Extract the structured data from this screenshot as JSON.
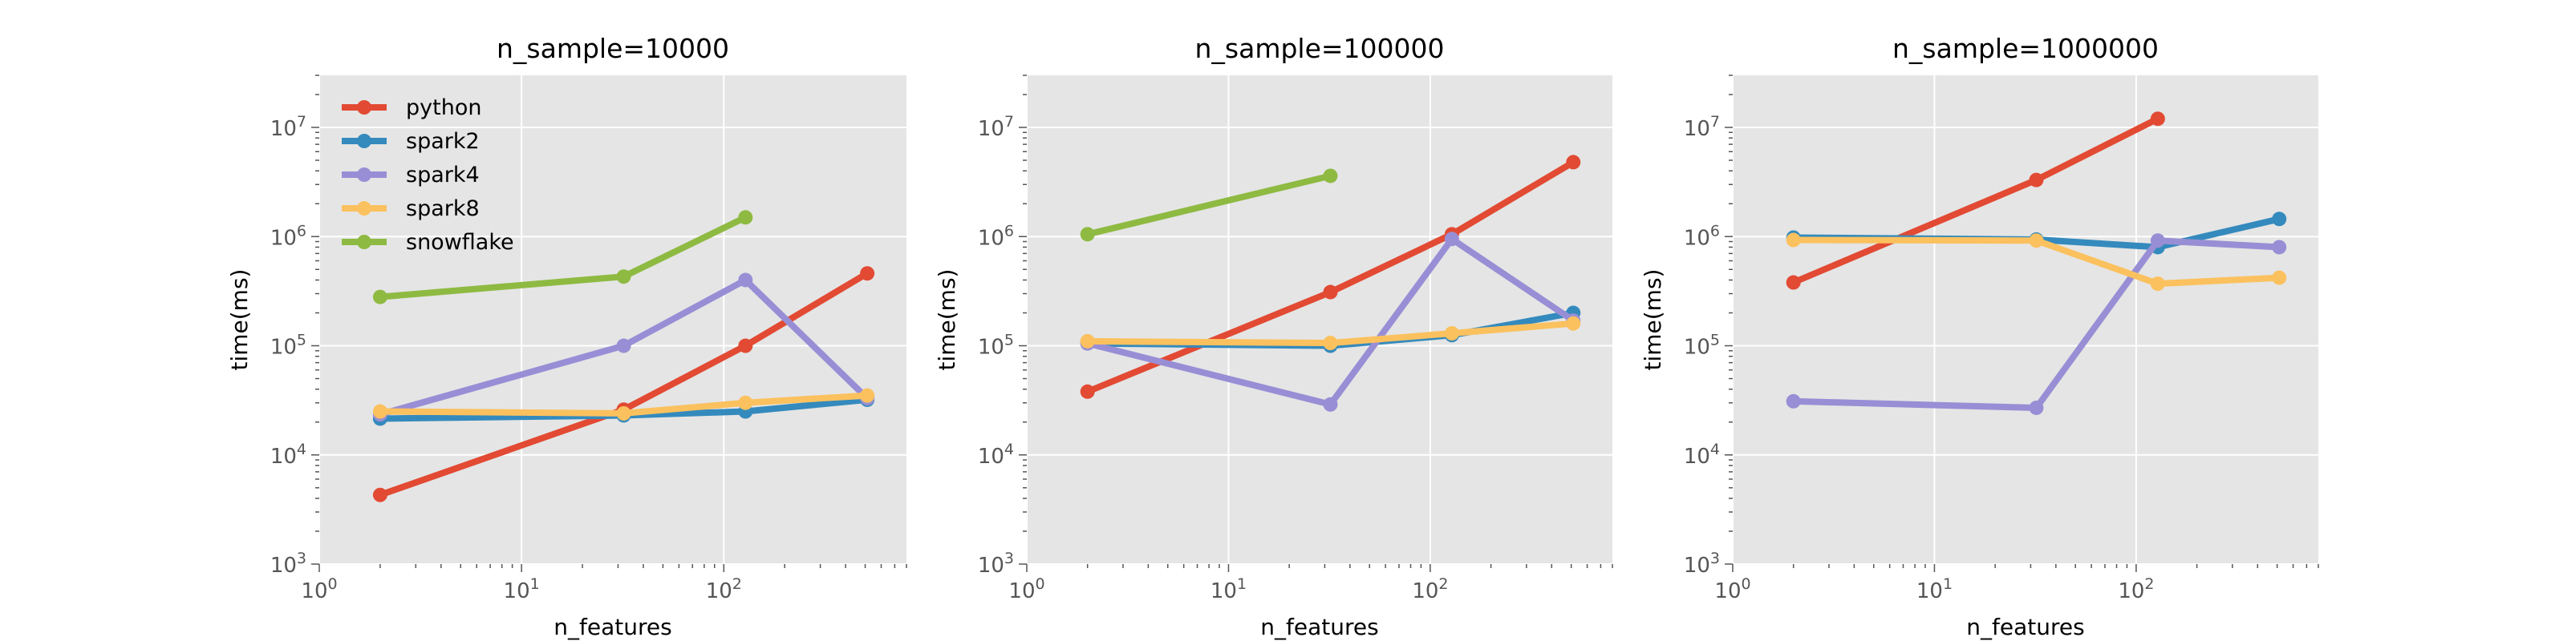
{
  "chart_data": [
    {
      "type": "line",
      "title": "n_sample=10000",
      "xlabel": "n_features",
      "ylabel": "time(ms)",
      "xscale": "log",
      "yscale": "log",
      "xlim": [
        1,
        800
      ],
      "ylim": [
        1000,
        30000000
      ],
      "x_tick_labels": [
        "10^0",
        "10^1",
        "10^2"
      ],
      "y_tick_labels": [
        "10^3",
        "10^4",
        "10^5",
        "10^6",
        "10^7"
      ],
      "grid": true,
      "legend": "top-left",
      "series": [
        {
          "name": "python",
          "color": "#E24A33",
          "x": [
            2,
            32,
            128,
            512
          ],
          "values": [
            4300,
            26000,
            100000,
            460000
          ]
        },
        {
          "name": "spark2",
          "color": "#348ABD",
          "x": [
            2,
            32,
            128,
            512
          ],
          "values": [
            21500,
            23000,
            25000,
            32000
          ]
        },
        {
          "name": "spark4",
          "color": "#988ED5",
          "x": [
            2,
            32,
            128,
            512
          ],
          "values": [
            23500,
            100000,
            400000,
            33000
          ]
        },
        {
          "name": "spark8",
          "color": "#FBC15E",
          "x": [
            2,
            32,
            128,
            512
          ],
          "values": [
            25000,
            24000,
            30000,
            35000
          ]
        },
        {
          "name": "snowflake",
          "color": "#8EBA42",
          "x": [
            2,
            32,
            128
          ],
          "values": [
            280000,
            430000,
            1500000
          ]
        }
      ]
    },
    {
      "type": "line",
      "title": "n_sample=100000",
      "xlabel": "n_features",
      "ylabel": "time(ms)",
      "xscale": "log",
      "yscale": "log",
      "xlim": [
        1,
        800
      ],
      "ylim": [
        1000,
        30000000
      ],
      "x_tick_labels": [
        "10^0",
        "10^1",
        "10^2"
      ],
      "y_tick_labels": [
        "10^3",
        "10^4",
        "10^5",
        "10^6",
        "10^7"
      ],
      "grid": true,
      "series": [
        {
          "name": "python",
          "color": "#E24A33",
          "x": [
            2,
            32,
            128,
            512
          ],
          "values": [
            38000,
            310000,
            1050000,
            4800000
          ]
        },
        {
          "name": "spark2",
          "color": "#348ABD",
          "x": [
            2,
            32,
            128,
            512
          ],
          "values": [
            105000,
            100000,
            125000,
            200000
          ]
        },
        {
          "name": "spark4",
          "color": "#988ED5",
          "x": [
            2,
            32,
            128,
            512
          ],
          "values": [
            105000,
            29000,
            950000,
            170000
          ]
        },
        {
          "name": "spark8",
          "color": "#FBC15E",
          "x": [
            2,
            32,
            128,
            512
          ],
          "values": [
            110000,
            106000,
            130000,
            160000
          ]
        },
        {
          "name": "snowflake",
          "color": "#8EBA42",
          "x": [
            2,
            32
          ],
          "values": [
            1050000,
            3600000
          ]
        }
      ]
    },
    {
      "type": "line",
      "title": "n_sample=1000000",
      "xlabel": "n_features",
      "ylabel": "time(ms)",
      "xscale": "log",
      "yscale": "log",
      "xlim": [
        1,
        800
      ],
      "ylim": [
        1000,
        30000000
      ],
      "x_tick_labels": [
        "10^0",
        "10^1",
        "10^2"
      ],
      "y_tick_labels": [
        "10^3",
        "10^4",
        "10^5",
        "10^6",
        "10^7"
      ],
      "grid": true,
      "series": [
        {
          "name": "python",
          "color": "#E24A33",
          "x": [
            2,
            32,
            128
          ],
          "values": [
            380000,
            3300000,
            12000000
          ]
        },
        {
          "name": "spark2",
          "color": "#348ABD",
          "x": [
            2,
            32,
            128,
            512
          ],
          "values": [
            980000,
            940000,
            800000,
            1450000
          ]
        },
        {
          "name": "spark4",
          "color": "#988ED5",
          "x": [
            2,
            32,
            128,
            512
          ],
          "values": [
            31000,
            27000,
            920000,
            800000
          ]
        },
        {
          "name": "spark8",
          "color": "#FBC15E",
          "x": [
            2,
            32,
            128,
            512
          ],
          "values": [
            930000,
            920000,
            370000,
            420000
          ]
        }
      ]
    }
  ]
}
